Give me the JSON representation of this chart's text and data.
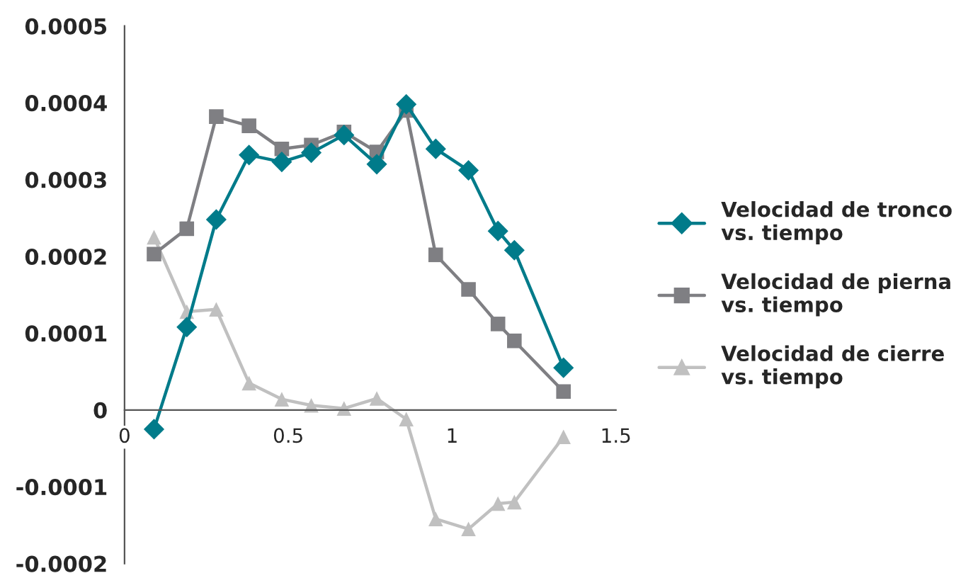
{
  "chart_data": {
    "type": "line",
    "x": [
      0.09,
      0.19,
      0.28,
      0.38,
      0.48,
      0.57,
      0.67,
      0.77,
      0.86,
      0.95,
      1.05,
      1.14,
      1.19,
      1.34
    ],
    "series": [
      {
        "name": "Velocidad de tronco\nvs. tiempo",
        "color": "#007b8a",
        "marker": "diamond",
        "values": [
          -2.5e-05,
          0.000108,
          0.000248,
          0.000332,
          0.000323,
          0.000335,
          0.000358,
          0.00032,
          0.000398,
          0.00034,
          0.000312,
          0.000233,
          0.000208,
          5.5e-05
        ]
      },
      {
        "name": "Velocidad de pierna\nvs. tiempo",
        "color": "#7f7f83",
        "marker": "square",
        "values": [
          0.000203,
          0.000236,
          0.000382,
          0.00037,
          0.00034,
          0.000345,
          0.000362,
          0.000336,
          0.00039,
          0.000202,
          0.000157,
          0.000112,
          9e-05,
          2.4e-05
        ]
      },
      {
        "name": "Velocidad de cierre\nvs. tiempo",
        "color": "#c0c0c0",
        "marker": "triangle",
        "values": [
          0.000225,
          0.000128,
          0.000131,
          3.5e-05,
          1.4e-05,
          6e-06,
          2e-06,
          1.5e-05,
          -1.2e-05,
          -0.000142,
          -0.000155,
          -0.000122,
          -0.00012,
          -3.5e-05
        ]
      }
    ],
    "xlim": [
      0,
      1.5
    ],
    "xticks": [
      0,
      0.5,
      1,
      1.5
    ],
    "ylim": [
      -0.0002,
      0.0005
    ],
    "yticks": [
      -0.0002,
      -0.0001,
      0,
      0.0001,
      0.0002,
      0.0003,
      0.0004,
      0.0005
    ],
    "grid": false,
    "legend": "right"
  }
}
